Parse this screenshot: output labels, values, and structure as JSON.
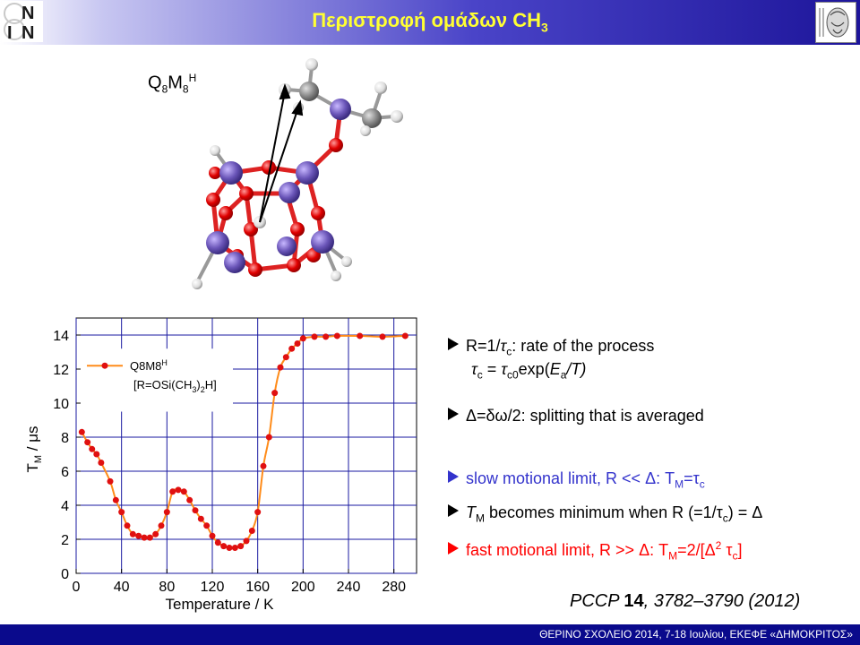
{
  "header": {
    "title_main": "Περιστροφή ομάδων CH",
    "title_sub": "3",
    "logo_left_text": "N I N",
    "logo_right_alt": "seal"
  },
  "molecule": {
    "label_main": "Q",
    "label_sub1": "8",
    "label_m": "M",
    "label_sub2": "8",
    "label_sup": "H"
  },
  "chart_data": {
    "type": "line",
    "xlabel": "Temperature / K",
    "ylabel_main": "T",
    "ylabel_sub": "M",
    "ylabel_unit": " / μs",
    "xlim": [
      0,
      300
    ],
    "ylim": [
      0,
      15
    ],
    "xticks": [
      "0",
      "40",
      "80",
      "120",
      "160",
      "200",
      "240",
      "280"
    ],
    "yticks": [
      "0",
      "2",
      "4",
      "6",
      "8",
      "10",
      "12",
      "14"
    ],
    "legend_name": "Q8M8",
    "legend_sup": "H",
    "legend_line2_a": "[R=OSi(CH",
    "legend_line2_sub1": "3",
    "legend_line2_b": ")",
    "legend_line2_sub2": "2",
    "legend_line2_c": "H]",
    "series_color": "#ff8c1a",
    "marker_color": "#e01010",
    "x": [
      5,
      10,
      14,
      18,
      22,
      30,
      35,
      40,
      45,
      50,
      55,
      60,
      65,
      70,
      75,
      80,
      85,
      90,
      95,
      100,
      105,
      110,
      115,
      120,
      125,
      130,
      135,
      140,
      145,
      150,
      155,
      160,
      165,
      170,
      175,
      180,
      185,
      190,
      195,
      200,
      210,
      220,
      230,
      250,
      270,
      290
    ],
    "y": [
      8.3,
      7.7,
      7.3,
      7.0,
      6.5,
      5.4,
      4.3,
      3.6,
      2.8,
      2.3,
      2.2,
      2.1,
      2.1,
      2.3,
      2.8,
      3.6,
      4.8,
      4.9,
      4.8,
      4.3,
      3.7,
      3.2,
      2.8,
      2.2,
      1.8,
      1.6,
      1.5,
      1.5,
      1.6,
      1.9,
      2.5,
      3.6,
      6.3,
      8.0,
      10.6,
      12.1,
      12.7,
      13.2,
      13.5,
      13.8,
      13.9,
      13.9,
      13.95,
      13.95,
      13.9,
      13.95
    ]
  },
  "bullets": {
    "b1_a": "R=1/",
    "b1_tau": "τ",
    "b1_sub": "c",
    "b1_b": ": rate of the process",
    "b1b_tau": "τ",
    "b1b_sub": "c",
    "b1b_eq": " = ",
    "b1b_tau2": "τ",
    "b1b_sub2": "c0",
    "b1b_exp": "exp(",
    "b1b_E": "E",
    "b1b_Esub": "a",
    "b1b_T": "/T)",
    "b2": "Δ=δω/2: splitting that is averaged",
    "b3": "slow motional limit, R << Δ: T",
    "b3_sub": "M",
    "b3_end": "=τ",
    "b3_end_sub": "c",
    "b4_T": "T",
    "b4_sub": "M",
    "b4_text": " becomes minimum when R (=1/τ",
    "b4_sub2": "c",
    "b4_end": ") = Δ",
    "b5": "fast motional limit, R >> Δ: T",
    "b5_sub": "M",
    "b5_mid": "=2/[Δ",
    "b5_sup": "2",
    "b5_tau": " τ",
    "b5_tau_sub": "c",
    "b5_end": "]"
  },
  "reference": {
    "journal": "PCCP ",
    "volume": "14",
    "pages": ", 3782–3790 (2012)"
  },
  "footer": {
    "text": "ΘΕΡΙΝΟ ΣΧΟΛΕΙΟ 2014, 7-18 Ιουλίου, ΕΚΕΦΕ «ΔΗΜΟΚΡΙΤΟΣ»"
  }
}
